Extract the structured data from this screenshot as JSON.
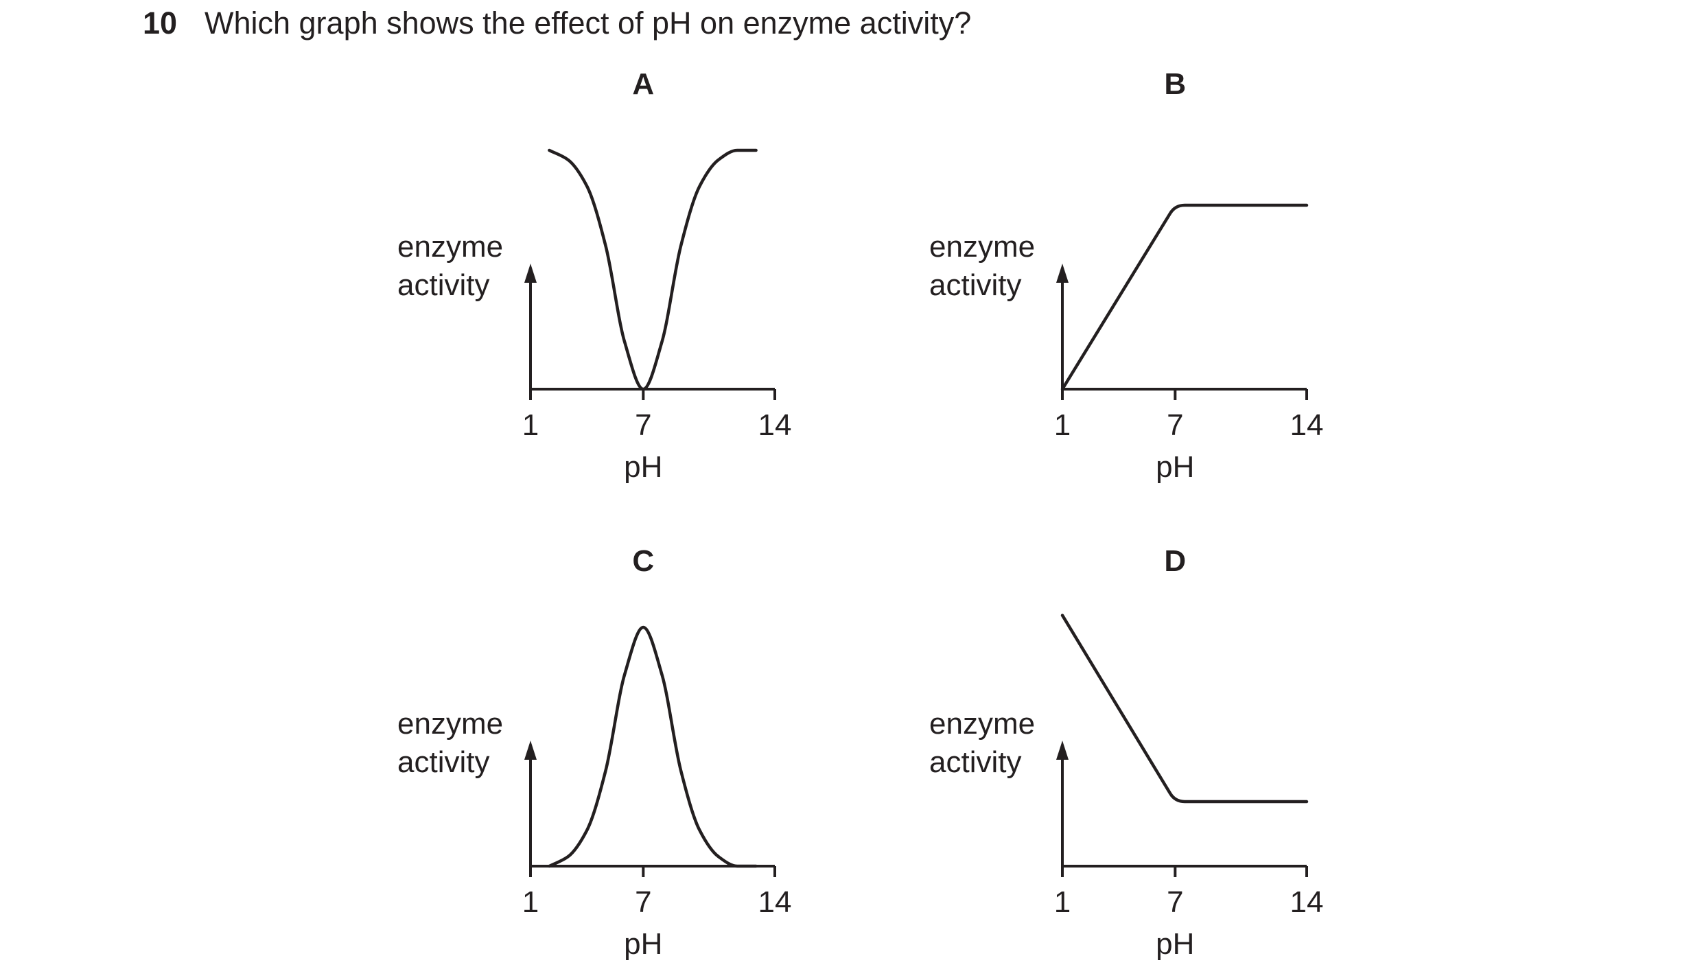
{
  "question": {
    "number": "10",
    "text": "Which graph shows the effect of pH on enzyme activity?"
  },
  "chart_data": [
    {
      "type": "line",
      "panel": "A",
      "ylabel_lines": [
        "enzyme",
        "activity"
      ],
      "xlabel": "pH",
      "x_ticks": [
        "1",
        "7",
        "14"
      ],
      "xlim": [
        1,
        14
      ],
      "ylim": [
        0,
        1
      ],
      "series": [
        {
          "x": [
            2,
            3,
            4,
            5,
            6,
            7,
            8,
            9,
            10,
            11,
            12,
            13
          ],
          "y": [
            1.0,
            0.96,
            0.85,
            0.6,
            0.2,
            0.0,
            0.2,
            0.6,
            0.85,
            0.96,
            1.0,
            1.0
          ]
        }
      ]
    },
    {
      "type": "line",
      "panel": "B",
      "ylabel_lines": [
        "enzyme",
        "activity"
      ],
      "xlabel": "pH",
      "x_ticks": [
        "1",
        "7",
        "14"
      ],
      "xlim": [
        1,
        14
      ],
      "ylim": [
        0,
        1
      ],
      "series": [
        {
          "x": [
            1,
            7,
            14
          ],
          "y": [
            0.0,
            0.77,
            0.77
          ]
        }
      ]
    },
    {
      "type": "line",
      "panel": "C",
      "ylabel_lines": [
        "enzyme",
        "activity"
      ],
      "xlabel": "pH",
      "x_ticks": [
        "1",
        "7",
        "14"
      ],
      "xlim": [
        1,
        14
      ],
      "ylim": [
        0,
        1
      ],
      "series": [
        {
          "x": [
            2,
            3,
            4,
            5,
            6,
            7,
            8,
            9,
            10,
            11,
            12,
            13
          ],
          "y": [
            0.0,
            0.04,
            0.15,
            0.4,
            0.8,
            1.0,
            0.8,
            0.4,
            0.15,
            0.04,
            0.0,
            0.0
          ]
        }
      ]
    },
    {
      "type": "line",
      "panel": "D",
      "ylabel_lines": [
        "enzyme",
        "activity"
      ],
      "xlabel": "pH",
      "x_ticks": [
        "1",
        "7",
        "14"
      ],
      "xlim": [
        1,
        14
      ],
      "ylim": [
        0,
        1
      ],
      "series": [
        {
          "x": [
            1,
            7,
            14
          ],
          "y": [
            1.05,
            0.27,
            0.27
          ]
        }
      ]
    }
  ]
}
